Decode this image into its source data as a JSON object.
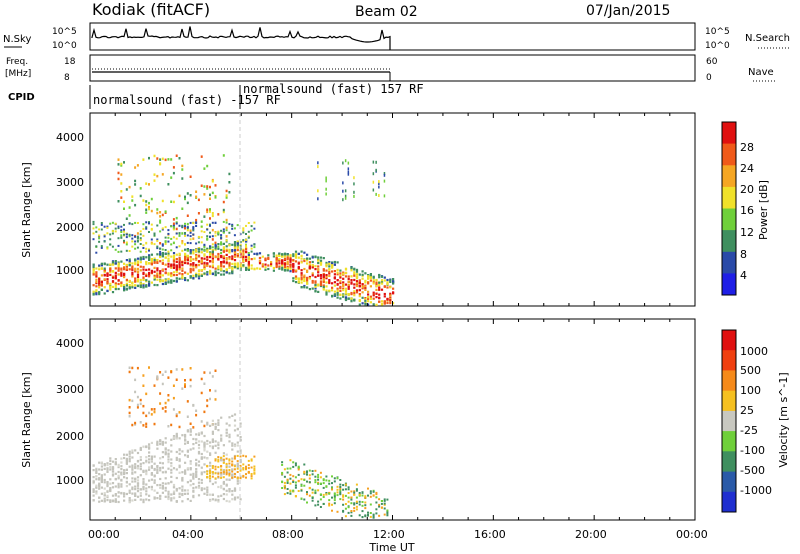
{
  "header": {
    "station": "Kodiak (fitACF)",
    "beam": "Beam 02",
    "date": "07/Jan/2015"
  },
  "top_panels": {
    "nsky_label": "N.Sky",
    "nsearch_label": "N.Search",
    "freq_label_1": "Freq.",
    "freq_label_2": "[MHz]",
    "nave_label": "Nave",
    "cpid_label": "CPID",
    "nsky_ticks": [
      "10^5",
      "10^0"
    ],
    "nsearch_ticks": [
      "10^5",
      "10^0"
    ],
    "freq_ticks": [
      "18",
      "8"
    ],
    "nave_ticks": [
      "60",
      "0"
    ],
    "cpid_1": "normalsound (fast) -157 RF",
    "cpid_2": "normalsound (fast) 157 RF"
  },
  "chart_data": [
    {
      "type": "heatmap",
      "title": "",
      "ylabel": "Slant Range [km]",
      "xlabel": "",
      "yticks": [
        "1000",
        "2000",
        "3000",
        "4000"
      ],
      "colorbar": {
        "label": "Power [dB]",
        "ticks": [
          "4",
          "8",
          "12",
          "16",
          "20",
          "24",
          "28"
        ],
        "colors": [
          "#1f1fe6",
          "#2a4aa8",
          "#3f8f5f",
          "#6fcf3a",
          "#f0e12a",
          "#f5a623",
          "#f05a1a",
          "#e01010"
        ]
      }
    },
    {
      "type": "heatmap",
      "title": "",
      "ylabel": "Slant Range [km]",
      "xlabel": "Time UT",
      "yticks": [
        "1000",
        "2000",
        "3000",
        "4000"
      ],
      "xticks": [
        "00:00",
        "04:00",
        "08:00",
        "12:00",
        "16:00",
        "20:00",
        "00:00"
      ],
      "colorbar": {
        "label": "Velocity [m s^-1]",
        "ticks": [
          "1000",
          "500",
          "100",
          "25",
          "-25",
          "-100",
          "-500",
          "-1000"
        ],
        "colors": [
          "#1f2fd0",
          "#2a5aa8",
          "#3f8f5f",
          "#6fcf3a",
          "#c8c8c0",
          "#f5c020",
          "#f58a1a",
          "#f04010",
          "#e01010"
        ]
      }
    }
  ]
}
